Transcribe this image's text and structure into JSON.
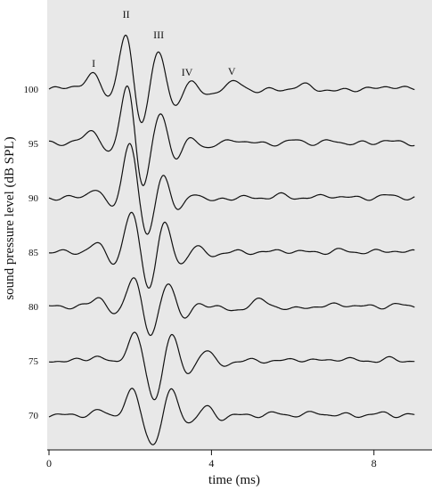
{
  "chart_data": {
    "type": "line",
    "title": "",
    "xlabel": "time (ms)",
    "ylabel": "sound pressure level (dB SPL)",
    "xlim": [
      0,
      9
    ],
    "x_ticks": [
      "0",
      "4",
      "8"
    ],
    "x_tick_values": [
      0,
      4,
      8
    ],
    "background": "#e8e8e8",
    "grid": false,
    "peak_labels": [
      {
        "text": "I",
        "x": 1.1
      },
      {
        "text": "II",
        "x": 1.9
      },
      {
        "text": "III",
        "x": 2.7
      },
      {
        "text": "IV",
        "x": 3.4
      },
      {
        "text": "V",
        "x": 4.5
      }
    ],
    "series": [
      {
        "level": "100",
        "peaks": [
          [
            0.65,
            0.2
          ],
          [
            1.1,
            0.9
          ],
          [
            1.5,
            -0.6
          ],
          [
            1.9,
            3.6
          ],
          [
            2.25,
            -2.4
          ],
          [
            2.7,
            2.5
          ],
          [
            3.05,
            -1.2
          ],
          [
            3.5,
            0.5
          ],
          [
            3.85,
            -0.4
          ],
          [
            4.6,
            0.45
          ],
          [
            5.2,
            -0.15
          ],
          [
            6.3,
            0.25
          ],
          [
            7.0,
            -0.15
          ],
          [
            8.4,
            0.2
          ]
        ]
      },
      {
        "level": "95",
        "peaks": [
          [
            0.7,
            0.15
          ],
          [
            1.1,
            0.8
          ],
          [
            1.5,
            -0.7
          ],
          [
            1.95,
            3.9
          ],
          [
            2.3,
            -3.1
          ],
          [
            2.75,
            2.1
          ],
          [
            3.1,
            -1.1
          ],
          [
            3.5,
            0.35
          ],
          [
            3.9,
            -0.25
          ],
          [
            4.6,
            0.25
          ],
          [
            6.1,
            0.2
          ],
          [
            7.0,
            0.15
          ],
          [
            8.3,
            0.2
          ]
        ]
      },
      {
        "level": "90",
        "peaks": [
          [
            1.15,
            0.6
          ],
          [
            1.55,
            -0.7
          ],
          [
            2.0,
            3.6
          ],
          [
            2.4,
            -2.7
          ],
          [
            2.8,
            1.7
          ],
          [
            3.15,
            -1.0
          ],
          [
            3.55,
            0.4
          ],
          [
            3.95,
            -0.25
          ],
          [
            5.7,
            0.15
          ],
          [
            6.9,
            0.15
          ],
          [
            8.4,
            0.15
          ]
        ]
      },
      {
        "level": "85",
        "peaks": [
          [
            1.2,
            0.55
          ],
          [
            1.6,
            -0.7
          ],
          [
            2.05,
            2.6
          ],
          [
            2.45,
            -2.4
          ],
          [
            2.85,
            2.0
          ],
          [
            3.2,
            -0.9
          ],
          [
            3.6,
            0.35
          ],
          [
            4.0,
            -0.2
          ],
          [
            5.8,
            0.1
          ],
          [
            7.2,
            0.1
          ],
          [
            8.4,
            0.1
          ]
        ]
      },
      {
        "level": "80",
        "peaks": [
          [
            1.25,
            0.6
          ],
          [
            1.65,
            -0.6
          ],
          [
            2.1,
            2.0
          ],
          [
            2.5,
            -2.0
          ],
          [
            2.95,
            1.7
          ],
          [
            3.3,
            -0.9
          ],
          [
            3.75,
            0.2
          ],
          [
            4.5,
            -0.3
          ],
          [
            5.2,
            0.4
          ],
          [
            6.0,
            -0.2
          ],
          [
            7.2,
            0.15
          ],
          [
            8.6,
            0.1
          ]
        ]
      },
      {
        "level": "75",
        "peaks": [
          [
            1.15,
            0.3
          ],
          [
            1.7,
            -0.2
          ],
          [
            2.1,
            1.8
          ],
          [
            2.6,
            -2.6
          ],
          [
            3.0,
            1.8
          ],
          [
            3.4,
            -0.9
          ],
          [
            3.85,
            0.7
          ],
          [
            4.25,
            -0.3
          ],
          [
            6.2,
            0.1
          ],
          [
            7.2,
            0.15
          ],
          [
            8.4,
            0.1
          ]
        ]
      },
      {
        "level": "70",
        "peaks": [
          [
            1.25,
            0.25
          ],
          [
            1.7,
            -0.1
          ],
          [
            2.05,
            1.6
          ],
          [
            2.4,
            -0.5
          ],
          [
            2.6,
            -1.6
          ],
          [
            3.0,
            1.6
          ],
          [
            3.45,
            -0.5
          ],
          [
            3.9,
            0.55
          ],
          [
            4.2,
            -0.25
          ],
          [
            5.6,
            0.1
          ],
          [
            6.6,
            0.15
          ],
          [
            8.2,
            0.1
          ]
        ]
      }
    ]
  }
}
